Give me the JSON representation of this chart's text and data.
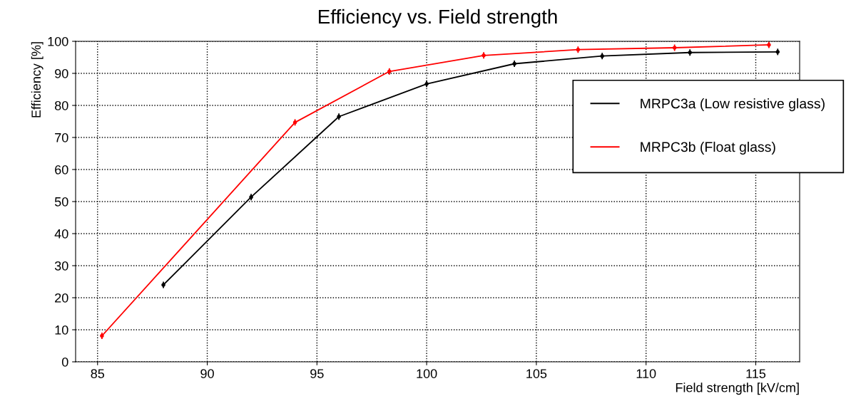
{
  "chart_data": {
    "type": "line",
    "title": "Efficiency vs. Field strength",
    "xlabel": "Field strength [kV/cm]",
    "ylabel": "Efficiency [%]",
    "series": [
      {
        "name": "MRPC3a (Low resistive glass)",
        "color": "#000000",
        "x": [
          88,
          92,
          96,
          100,
          104,
          108,
          112,
          116
        ],
        "values": [
          24.0,
          51.4,
          76.5,
          86.7,
          93.0,
          95.4,
          96.5,
          96.7
        ],
        "errors": [
          1,
          1,
          1,
          1,
          1,
          1,
          1,
          1
        ]
      },
      {
        "name": "MRPC3b (Float glass)",
        "color": "#ff0000",
        "x": [
          85.2,
          94,
          98.3,
          102.6,
          106.9,
          111.3,
          115.6
        ],
        "values": [
          8.1,
          74.7,
          90.6,
          95.6,
          97.4,
          98.0,
          98.9
        ],
        "errors": [
          1,
          1,
          1,
          1,
          1,
          1,
          1
        ]
      }
    ],
    "xlim": [
      84,
      117
    ],
    "ylim": [
      0,
      100
    ],
    "xticks": [
      85,
      90,
      95,
      100,
      105,
      110,
      115
    ],
    "yticks": [
      0,
      10,
      20,
      30,
      40,
      50,
      60,
      70,
      80,
      90,
      100
    ],
    "grid": true,
    "legend": "top right",
    "marker": "circle",
    "line_style": "solid"
  }
}
